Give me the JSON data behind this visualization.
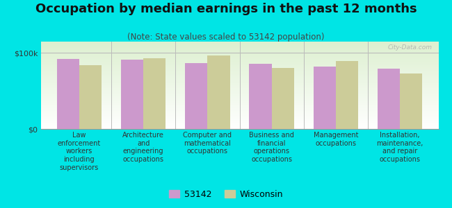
{
  "title": "Occupation by median earnings in the past 12 months",
  "subtitle": "(Note: State values scaled to 53142 population)",
  "categories": [
    "Law\nenforcement\nworkers\nincluding\nsupervisors",
    "Architecture\nand\nengineering\noccupations",
    "Computer and\nmathematical\noccupations",
    "Business and\nfinancial\noperations\noccupations",
    "Management\noccupations",
    "Installation,\nmaintenance,\nand repair\noccupations"
  ],
  "values_53142": [
    92000,
    91000,
    87000,
    86000,
    82000,
    79000
  ],
  "values_wisconsin": [
    84000,
    93000,
    97000,
    80000,
    89000,
    73000
  ],
  "color_53142": "#cc99cc",
  "color_wisconsin": "#cccc99",
  "bar_width": 0.35,
  "ylabel_ticks": [
    "$0",
    "$100k"
  ],
  "ytick_values": [
    0,
    100000
  ],
  "ylim": [
    0,
    115000
  ],
  "background_color": "#00e5e5",
  "plot_bg_top": "#ddf0d0",
  "plot_bg_bottom": "#ffffff",
  "watermark": "City-Data.com",
  "legend_53142": "53142",
  "legend_wisconsin": "Wisconsin",
  "title_fontsize": 13,
  "subtitle_fontsize": 8.5,
  "tick_label_fontsize": 7,
  "legend_fontsize": 9,
  "ytick_fontsize": 8
}
